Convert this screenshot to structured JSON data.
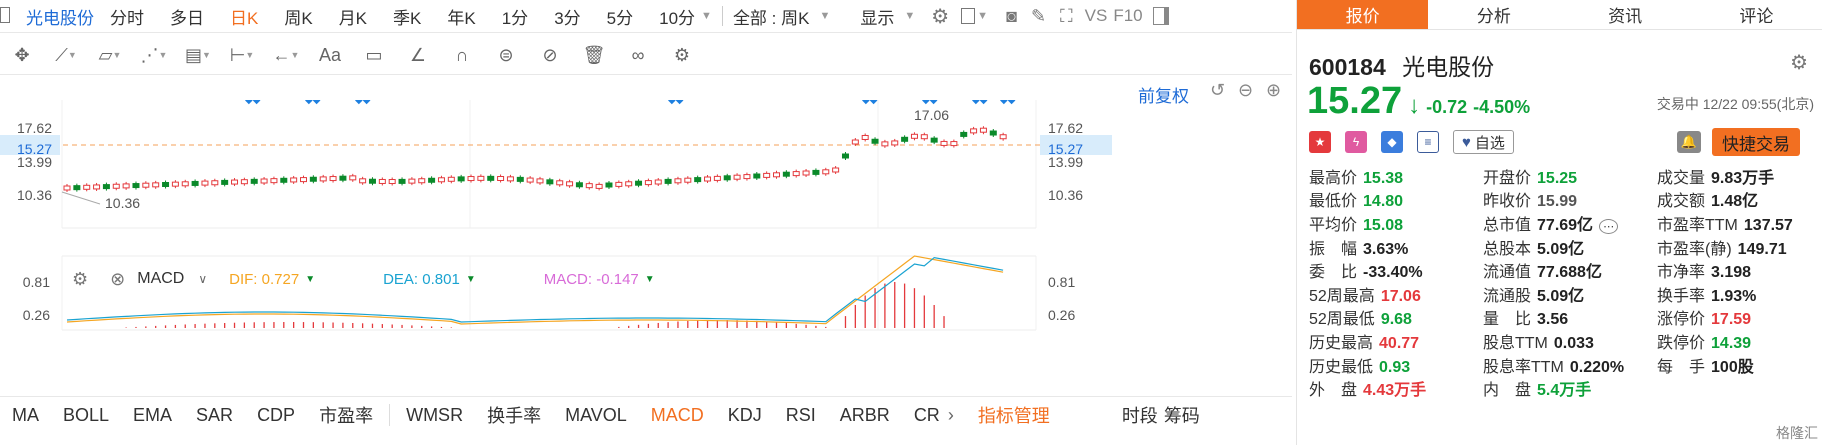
{
  "colors": {
    "accent": "#f26f21",
    "up": "#e4393c",
    "down": "#0ea13a",
    "link": "#1e6bd6"
  },
  "toolbar": {
    "stock_name": "光电股份",
    "periods": [
      "分时",
      "多日",
      "日K",
      "周K",
      "月K",
      "季K",
      "年K",
      "1分",
      "3分",
      "5分",
      "10分"
    ],
    "active_period": "日K",
    "range_select": "全部 : 周K",
    "display_label": "显示",
    "vs_label": "VS",
    "f10_label": "F10"
  },
  "chart_toolbar": {
    "fuquan": "前复权",
    "tools": [
      "move-icon",
      "line-icon",
      "polyline-icon",
      "wave-icon",
      "fibonacci-icon",
      "range-icon",
      "arrow-left-icon",
      "text-icon",
      "comment-icon",
      "angle-icon",
      "magnet-icon",
      "lock-icon",
      "hide-icon",
      "trash-icon",
      "link-icon",
      "settings-icon"
    ],
    "text_tool": "Aa"
  },
  "kline": {
    "price_labels": [
      "17.62",
      "15.27",
      "13.99",
      "10.36"
    ],
    "current_price": "15.27",
    "high_label": "17.06",
    "low_label": "10.36"
  },
  "macd": {
    "label": "MACD",
    "dif": "DIF: 0.727",
    "dea": "DEA: 0.801",
    "macd": "MACD: -0.147",
    "axis_labels": [
      "0.81",
      "0.26"
    ]
  },
  "bottom_tabs": {
    "items": [
      "MA",
      "BOLL",
      "EMA",
      "SAR",
      "CDP",
      "市盈率",
      "WMSR",
      "换手率",
      "MAVOL",
      "MACD",
      "KDJ",
      "RSI",
      "ARBR",
      "CR"
    ],
    "active": "MACD",
    "manage": "指标管理",
    "timeshare": "时段",
    "chips": "筹码"
  },
  "panel": {
    "tabs": [
      "报价",
      "分析",
      "资讯",
      "评论"
    ],
    "code": "600184",
    "name": "光电股份",
    "price": "15.27",
    "change": "-0.72",
    "change_pct": "-4.50%",
    "status": "交易中 12/22 09:55(北京)",
    "zixuan": "自选",
    "quick_trade": "快捷交易",
    "rows": [
      [
        {
          "l": "最高价",
          "v": "15.38",
          "c": "green"
        },
        {
          "l": "开盘价",
          "v": "15.25",
          "c": "green"
        },
        {
          "l": "成交量",
          "v": "9.83万手",
          "c": "dark"
        }
      ],
      [
        {
          "l": "最低价",
          "v": "14.80",
          "c": "green"
        },
        {
          "l": "昨收价",
          "v": "15.99",
          "c": "gray"
        },
        {
          "l": "成交额",
          "v": "1.48亿",
          "c": "dark"
        }
      ],
      [
        {
          "l": "平均价",
          "v": "15.08",
          "c": "green"
        },
        {
          "l": "总市值",
          "v": "77.69亿",
          "c": "dark"
        },
        {
          "l": "市盈率TTM",
          "v": "137.57",
          "c": "dark"
        }
      ],
      [
        {
          "l": "振　幅",
          "v": "3.63%",
          "c": "dark"
        },
        {
          "l": "总股本",
          "v": "5.09亿",
          "c": "dark"
        },
        {
          "l": "市盈率(静)",
          "v": "149.71",
          "c": "dark"
        }
      ],
      [
        {
          "l": "委　比",
          "v": "-33.40%",
          "c": "dark"
        },
        {
          "l": "流通值",
          "v": "77.688亿",
          "c": "dark"
        },
        {
          "l": "市净率",
          "v": "3.198",
          "c": "dark"
        }
      ],
      [
        {
          "l": "52周最高",
          "v": "17.06",
          "c": "red"
        },
        {
          "l": "流通股",
          "v": "5.09亿",
          "c": "dark"
        },
        {
          "l": "换手率",
          "v": "1.93%",
          "c": "dark"
        }
      ],
      [
        {
          "l": "52周最低",
          "v": "9.68",
          "c": "green"
        },
        {
          "l": "量　比",
          "v": "3.56",
          "c": "dark"
        },
        {
          "l": "涨停价",
          "v": "17.59",
          "c": "red"
        }
      ],
      [
        {
          "l": "历史最高",
          "v": "40.77",
          "c": "red"
        },
        {
          "l": "股息TTM",
          "v": "0.033",
          "c": "dark"
        },
        {
          "l": "跌停价",
          "v": "14.39",
          "c": "green"
        }
      ],
      [
        {
          "l": "历史最低",
          "v": "0.93",
          "c": "green"
        },
        {
          "l": "股息率TTM",
          "v": "0.220%",
          "c": "dark"
        },
        {
          "l": "每　手",
          "v": "100股",
          "c": "dark"
        }
      ],
      [
        {
          "l": "外　盘",
          "v": "4.43万手",
          "c": "red"
        },
        {
          "l": "内　盘",
          "v": "5.4万手",
          "c": "green"
        },
        {
          "l": "",
          "v": "",
          "c": "dark"
        }
      ]
    ],
    "watermark": "格隆汇"
  }
}
